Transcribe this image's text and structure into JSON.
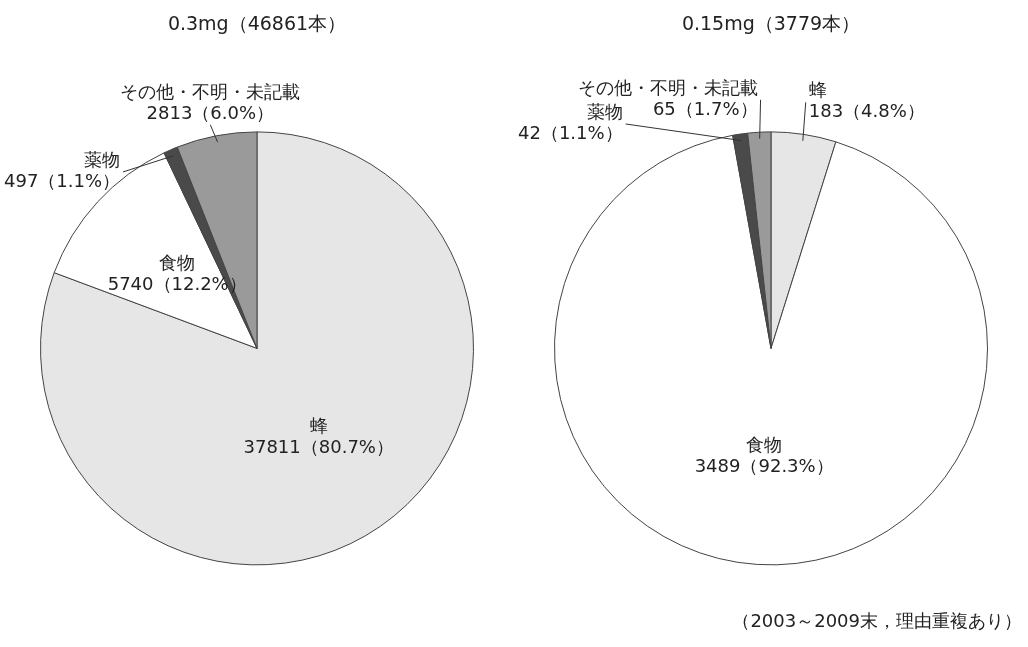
{
  "chart_data": [
    {
      "type": "pie",
      "title": "0.3mg（46861本）",
      "categories": [
        "蜂",
        "食物",
        "薬物",
        "その他・不明・未記載"
      ],
      "values": [
        37811,
        5740,
        497,
        2813
      ],
      "colors": [
        "#e6e6e6",
        "#ffffff",
        "#4a4a4a",
        "#9a9a9a"
      ],
      "value_labels": [
        "37811（80.7%）",
        "5740（12.2%）",
        "497（1.1%）",
        "2813（6.0%）"
      ],
      "legend": false
    },
    {
      "type": "pie",
      "title": "0.15mg（3779本）",
      "categories": [
        "蜂",
        "食物",
        "薬物",
        "その他・不明・未記載"
      ],
      "values": [
        183,
        3489,
        42,
        65
      ],
      "colors": [
        "#e6e6e6",
        "#ffffff",
        "#4a4a4a",
        "#9a9a9a"
      ],
      "value_labels": [
        "183（4.8%）",
        "3489（92.3%）",
        "42（1.1%）",
        "65（1.7%）"
      ],
      "legend": false,
      "annotations": [
        "（2003～2009末，理由重複あり）"
      ]
    }
  ]
}
